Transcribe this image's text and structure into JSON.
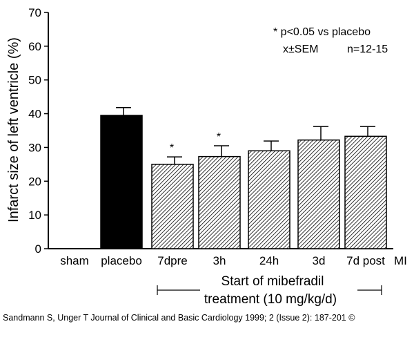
{
  "chart_data": {
    "type": "bar",
    "categories": [
      "sham",
      "placebo",
      "7dpre",
      "3h",
      "24h",
      "3d",
      "7d post"
    ],
    "values": [
      0,
      39.5,
      25,
      27.3,
      29,
      32.2,
      33.3
    ],
    "errors": [
      0,
      2.3,
      2.2,
      3.2,
      2.9,
      4.0,
      2.9
    ],
    "significant": [
      false,
      false,
      true,
      true,
      false,
      false,
      false
    ],
    "significance_marker": "*",
    "fills": [
      "none",
      "solid",
      "hatched",
      "hatched",
      "hatched",
      "hatched",
      "hatched"
    ],
    "ylabel": "Infarct size of left ventricle (%)",
    "ylim": [
      0,
      70
    ],
    "yticks": [
      0,
      10,
      20,
      30,
      40,
      50,
      60,
      70
    ],
    "x_axis_end_label": "MI",
    "annotations": {
      "line1": "* p<0.05 vs placebo",
      "line2_left": "x±SEM",
      "line2_right": "n=12-15"
    },
    "bracket_label": {
      "line1": "Start of mibefradil",
      "line2": "treatment (10 mg/kg/d)"
    },
    "grid": false,
    "legend": "none"
  },
  "citation": "Sandmann S, Unger T Journal of Clinical and Basic Cardiology 1999; 2 (Issue 2): 187-201 ©",
  "colors": {
    "bar_solid": "#000000",
    "hatch": "#000000",
    "background": "#ffffff"
  }
}
